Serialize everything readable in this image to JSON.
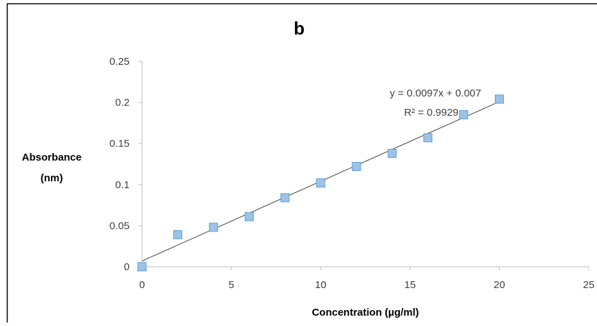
{
  "chart_data": {
    "type": "scatter",
    "title": "b",
    "xlabel": "Concentration (µg/ml)",
    "ylabel_lines": [
      "Absorbance",
      "(nm)"
    ],
    "xlim": [
      0,
      25
    ],
    "ylim": [
      0,
      0.25
    ],
    "x_ticks": [
      "0",
      "5",
      "10",
      "15",
      "20",
      "25"
    ],
    "y_ticks": [
      "0",
      "0.05",
      "0.1",
      "0.15",
      "0.2",
      "0.25"
    ],
    "grid": false,
    "legend": "none",
    "series": [
      {
        "x": [
          0,
          2,
          4,
          6,
          8,
          10,
          12,
          14,
          16,
          18,
          20
        ],
        "y": [
          0.0,
          0.039,
          0.048,
          0.061,
          0.084,
          0.102,
          0.122,
          0.138,
          0.157,
          0.185,
          0.204
        ],
        "marker": "square",
        "color": "#9dc3e6",
        "edge_color": "#5b9bd5"
      }
    ],
    "trendline": {
      "type": "linear",
      "slope": 0.0097,
      "intercept": 0.007,
      "x_range": [
        0,
        20
      ],
      "color": "#404040",
      "equation": "y = 0.0097x + 0.007",
      "r_squared": "R² = 0.9929"
    },
    "colors": {
      "axis": "#bfbfbf",
      "text": "#404040",
      "frame": "#000000"
    }
  }
}
